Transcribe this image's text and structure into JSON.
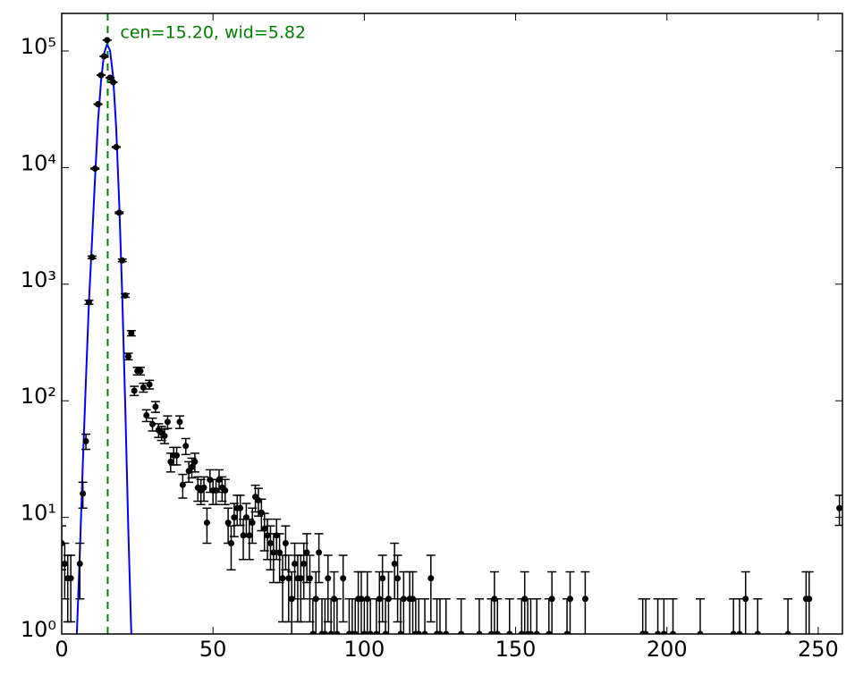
{
  "chart_data": {
    "type": "errorbar",
    "annotation": "cen=15.20, wid=5.82",
    "annotation_color": "#008000",
    "color": "#000000",
    "x": [
      0,
      1,
      2,
      3,
      6,
      7,
      8,
      9,
      10,
      11,
      12,
      13,
      14,
      15,
      16,
      17,
      18,
      19,
      20,
      21,
      22,
      23,
      24,
      25,
      26,
      27,
      28,
      29,
      30,
      31,
      32,
      33,
      34,
      35,
      36,
      37,
      38,
      39,
      40,
      41,
      42,
      43,
      44,
      45,
      46,
      47,
      48,
      49,
      50,
      51,
      52,
      53,
      54,
      55,
      56,
      57,
      58,
      59,
      60,
      61,
      62,
      63,
      64,
      65,
      66,
      67,
      68,
      69,
      70,
      71,
      72,
      73,
      74,
      75,
      76,
      77,
      78,
      79,
      80,
      81,
      82,
      83,
      84,
      85,
      86,
      87,
      88,
      89,
      90,
      91,
      93,
      95,
      96,
      97,
      98,
      99,
      100,
      101,
      102,
      104,
      105,
      106,
      107,
      108,
      110,
      111,
      112,
      113,
      115,
      116,
      117,
      118,
      120,
      122,
      124,
      125,
      127,
      132,
      138,
      142,
      143,
      144,
      148,
      152,
      153,
      154,
      155,
      157,
      161,
      162,
      167,
      168,
      173,
      192,
      193,
      197,
      199,
      202,
      211,
      222,
      224,
      226,
      230,
      240,
      246,
      247,
      257
    ],
    "values": [
      6,
      4,
      3,
      3,
      4,
      16,
      45,
      700,
      1700,
      9800,
      35000,
      62000,
      90000,
      124000,
      59000,
      54000,
      15000,
      4100,
      1600,
      800,
      240,
      380,
      122,
      180,
      180,
      130,
      75,
      138,
      63,
      89,
      56,
      53,
      50,
      66,
      30,
      34,
      34,
      66,
      19,
      41,
      25,
      27,
      30,
      18,
      17,
      18,
      9,
      21,
      17,
      17,
      21,
      18,
      17,
      9,
      6,
      10,
      12,
      12,
      7,
      10,
      7,
      9,
      15,
      14,
      11,
      8,
      7,
      6,
      5,
      7,
      5,
      3,
      6,
      3,
      2,
      4,
      3,
      3,
      4,
      5,
      3,
      1,
      2,
      5,
      1,
      1,
      3,
      1,
      2,
      1,
      3,
      1,
      1,
      1,
      2,
      2,
      1,
      2,
      1,
      1,
      2,
      3,
      1,
      2,
      4,
      3,
      1,
      2,
      2,
      2,
      1,
      1,
      1,
      3,
      1,
      1,
      1,
      1,
      1,
      1,
      2,
      1,
      1,
      1,
      2,
      1,
      1,
      1,
      1,
      2,
      1,
      2,
      2,
      1,
      1,
      1,
      1,
      1,
      1,
      1,
      1,
      2,
      1,
      1,
      2,
      2,
      12
    ],
    "errors": [
      2.45,
      2,
      1.73,
      1.73,
      2,
      4,
      6.71,
      26.46,
      41.23,
      98.99,
      187.08,
      249,
      300,
      352.14,
      242.9,
      232.38,
      122.47,
      64.03,
      40,
      28.28,
      15.49,
      19.49,
      11.05,
      13.42,
      13.42,
      11.4,
      8.66,
      11.75,
      7.94,
      9.43,
      7.48,
      7.28,
      7.07,
      8.12,
      5.48,
      5.83,
      5.83,
      8.12,
      4.36,
      6.4,
      5,
      5.2,
      5.48,
      4.24,
      4.12,
      4.24,
      3,
      4.58,
      4.12,
      4.12,
      4.58,
      4.24,
      4.12,
      3,
      2.45,
      3.16,
      3.46,
      3.46,
      2.65,
      3.16,
      2.65,
      3,
      3.87,
      3.74,
      3.32,
      2.83,
      2.65,
      2.45,
      2.24,
      2.65,
      2.24,
      1.73,
      2.45,
      1.73,
      1.41,
      2,
      1.73,
      1.73,
      2,
      2.24,
      1.73,
      1,
      1.41,
      2.24,
      1,
      1,
      1.73,
      1,
      1.41,
      1,
      1.73,
      1,
      1,
      1,
      1.41,
      1.41,
      1,
      1.41,
      1,
      1,
      1.41,
      1.73,
      1,
      1.41,
      2,
      1.73,
      1,
      1.41,
      1.41,
      1.41,
      1,
      1,
      1,
      1.73,
      1,
      1,
      1,
      1,
      1,
      1,
      1.41,
      1,
      1,
      1,
      1.41,
      1,
      1,
      1,
      1,
      1.41,
      1,
      1.41,
      1.41,
      1,
      1,
      1,
      1,
      1,
      1,
      1,
      1,
      1.41,
      1,
      1,
      1.41,
      1.41,
      3.46
    ],
    "fit": {
      "color": "#0000ff",
      "x": [
        5,
        6,
        7,
        8,
        9,
        10,
        11,
        12,
        13,
        14,
        15,
        16,
        17,
        18,
        19,
        20,
        21,
        22,
        23
      ],
      "values": [
        1,
        5,
        30,
        150,
        700,
        2300,
        8000,
        25000,
        55000,
        95000,
        115000,
        100000,
        60000,
        22000,
        5000,
        800,
        90,
        8,
        1
      ]
    },
    "vline": {
      "x": 15.2,
      "color": "#008000"
    },
    "xlim": [
      0,
      258
    ],
    "ylim": [
      1,
      210000
    ],
    "xticks": [
      0,
      50,
      100,
      150,
      200,
      250
    ],
    "yticks": [
      {
        "value": 1,
        "label": "10⁰"
      },
      {
        "value": 10,
        "label": "10¹"
      },
      {
        "value": 100,
        "label": "10²"
      },
      {
        "value": 1000,
        "label": "10³"
      },
      {
        "value": 10000,
        "label": "10⁴"
      },
      {
        "value": 100000,
        "label": "10⁵"
      }
    ],
    "yscale": "log"
  }
}
